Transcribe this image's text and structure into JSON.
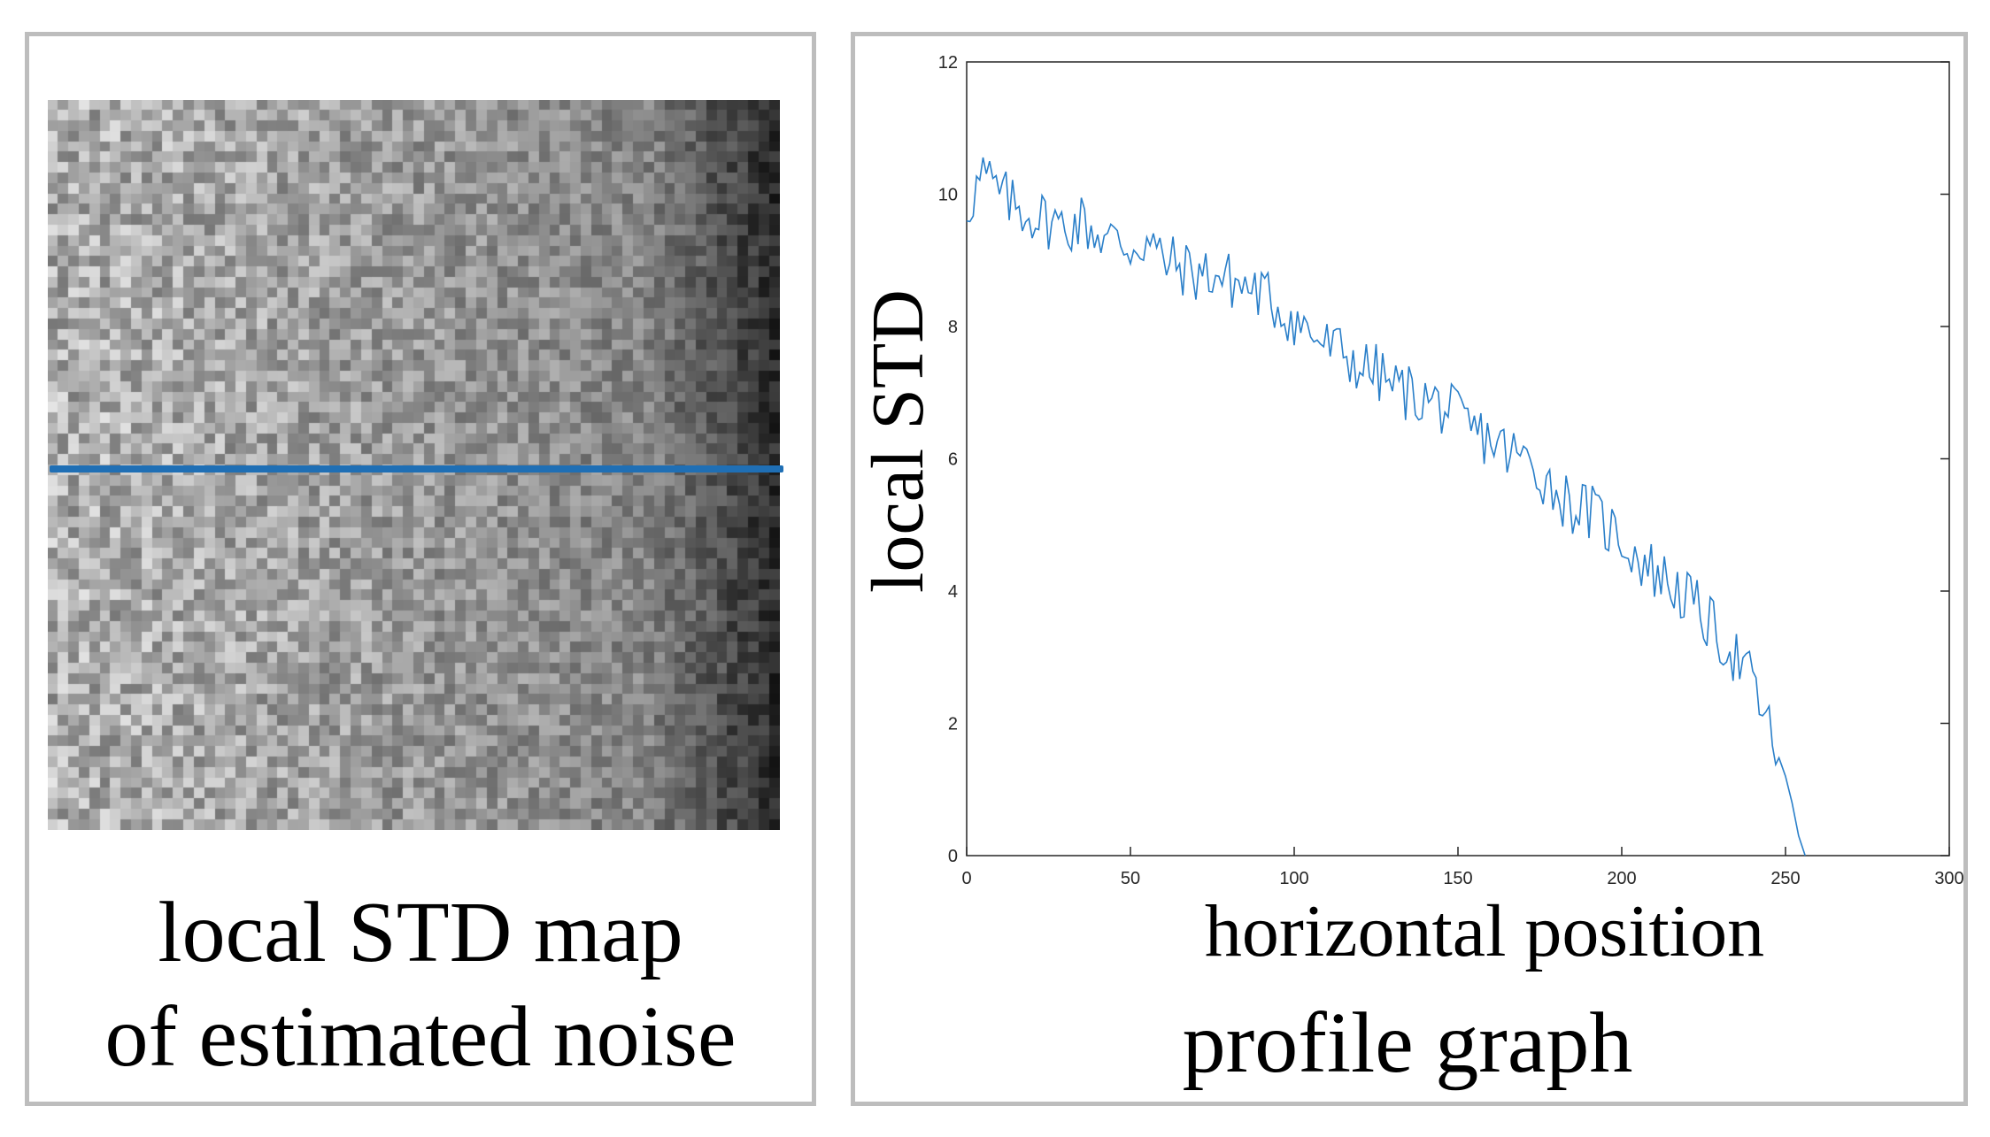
{
  "left_panel": {
    "caption_line1": "local STD map",
    "caption_line2": "of estimated noise",
    "profile_line_color": "#1f6fb5"
  },
  "right_panel": {
    "caption": "profile graph"
  },
  "chart_data": {
    "type": "line",
    "title": "",
    "xlabel": "horizontal position",
    "ylabel": "local STD",
    "xlim": [
      0,
      300
    ],
    "ylim": [
      0,
      12
    ],
    "xticks": [
      0,
      50,
      100,
      150,
      200,
      250,
      300
    ],
    "yticks": [
      0,
      2,
      4,
      6,
      8,
      10,
      12
    ],
    "grid": false,
    "line_color": "#2a7fc9",
    "series": [
      {
        "x": [
          0,
          5,
          10,
          15,
          20,
          25,
          30,
          35,
          40,
          45,
          50,
          55,
          60,
          65,
          70,
          75,
          80,
          85,
          90,
          95,
          100,
          105,
          110,
          115,
          120,
          125,
          130,
          135,
          140,
          145,
          150,
          155,
          160,
          165,
          170,
          175,
          180,
          185,
          190,
          195,
          200,
          205,
          210,
          215,
          220,
          225,
          230,
          235,
          240,
          245,
          250,
          252,
          254,
          256
        ],
        "y": [
          9.8,
          10.3,
          10.0,
          9.8,
          9.7,
          9.6,
          9.5,
          9.6,
          9.4,
          9.3,
          9.2,
          9.3,
          9.0,
          8.9,
          8.8,
          8.8,
          8.7,
          8.6,
          8.5,
          8.3,
          8.1,
          7.9,
          7.7,
          7.6,
          7.4,
          7.3,
          7.1,
          7.0,
          6.9,
          6.8,
          6.6,
          6.4,
          6.3,
          6.1,
          6.0,
          5.8,
          5.5,
          5.3,
          5.2,
          5.0,
          4.8,
          4.5,
          4.3,
          4.1,
          3.9,
          3.6,
          3.3,
          3.0,
          2.6,
          1.9,
          1.2,
          0.8,
          0.3,
          0.0
        ]
      }
    ]
  }
}
